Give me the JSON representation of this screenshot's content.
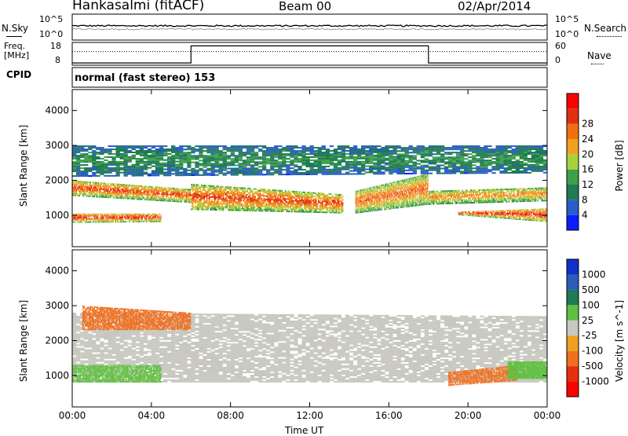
{
  "header": {
    "station": "Hankasalmi (fitACF)",
    "beam": "Beam 00",
    "date": "02/Apr/2014"
  },
  "noise_panel": {
    "left_label": "N.Sky",
    "right_label": "N.Search",
    "left_ticks": [
      "10^5",
      "10^0"
    ],
    "right_ticks": [
      "10^5",
      "10^0"
    ],
    "sky_level": 0.55,
    "search_level": 0.42
  },
  "freq_panel": {
    "left_label_1": "Freq.",
    "left_label_2": "[MHz]",
    "left_ticks": [
      "18",
      "8"
    ],
    "right_label": "Nave",
    "right_ticks": [
      "60",
      "0"
    ],
    "freq_level": 0.6,
    "nave_segments": [
      {
        "from": 0,
        "to": 6,
        "level": 0.1
      },
      {
        "from": 6,
        "to": 18,
        "level": 0.85
      },
      {
        "from": 18,
        "to": 24,
        "level": 0.1
      }
    ]
  },
  "cpid": {
    "label": "CPID",
    "value": "normal (fast stereo) 153"
  },
  "xaxis": {
    "label": "Time UT",
    "ticks": [
      "00:00",
      "04:00",
      "08:00",
      "12:00",
      "16:00",
      "20:00",
      "00:00"
    ],
    "range_hours": [
      0,
      24
    ]
  },
  "yaxis": {
    "label": "Slant Range [km]",
    "ticks": [
      "1000",
      "2000",
      "3000",
      "4000"
    ],
    "range_km": [
      100,
      4600
    ]
  },
  "power_scale": {
    "label": "Power [dB]",
    "ticks": [
      "4",
      "8",
      "12",
      "16",
      "20",
      "24",
      "28"
    ],
    "colors": [
      "#0a1eff",
      "#2a5cc8",
      "#1f7a55",
      "#3da04a",
      "#a8d23c",
      "#f0a020",
      "#f07010",
      "#e03010",
      "#ff0000"
    ]
  },
  "velocity_scale": {
    "label": "Velocity [m s^-1]",
    "ticks": [
      "1000",
      "500",
      "100",
      "25",
      "-25",
      "-100",
      "-500",
      "-1000"
    ],
    "colors": [
      "#1030c8",
      "#2a5cb8",
      "#1f7a55",
      "#60c040",
      "#c8c8c0",
      "#f0a020",
      "#f07020",
      "#e83010",
      "#ff0000"
    ]
  },
  "chart_data": [
    {
      "type": "heatmap",
      "name": "Power",
      "title": "Hankasalmi (fitACF) Beam 00 02/Apr/2014",
      "xlabel": "Time UT",
      "ylabel": "Slant Range [km]",
      "colorbar_label": "Power [dB]",
      "x_range_hours": [
        0,
        24
      ],
      "y_range_km": [
        100,
        4600
      ],
      "value_range_db": [
        0,
        30
      ],
      "scatter_bands": [
        {
          "t0": 0,
          "t1": 4.5,
          "r0_start": 780,
          "r1_start": 1050,
          "r0_end": 800,
          "r1_end": 1050,
          "peak_db": 28
        },
        {
          "t0": 0,
          "t1": 6,
          "r0_start": 1550,
          "r1_start": 2000,
          "r0_end": 1350,
          "r1_end": 1750,
          "peak_db": 26
        },
        {
          "t0": 6,
          "t1": 13.7,
          "r0_start": 1150,
          "r1_start": 1900,
          "r0_end": 1050,
          "r1_end": 1600,
          "peak_db": 26
        },
        {
          "t0": 14.3,
          "t1": 18,
          "r0_start": 1050,
          "r1_start": 1700,
          "r0_end": 1300,
          "r1_end": 2200,
          "peak_db": 24
        },
        {
          "t0": 18,
          "t1": 24,
          "r0_start": 1300,
          "r1_start": 1700,
          "r0_end": 1400,
          "r1_end": 1800,
          "peak_db": 22
        },
        {
          "t0": 19.5,
          "t1": 24,
          "r0_start": 1000,
          "r1_start": 1100,
          "r0_end": 800,
          "r1_end": 1200,
          "peak_db": 28
        },
        {
          "t0": 0,
          "t1": 24,
          "r0_start": 2100,
          "r1_start": 3000,
          "r0_end": 2200,
          "r1_end": 3000,
          "peak_db": 10
        }
      ]
    },
    {
      "type": "heatmap",
      "name": "Velocity",
      "xlabel": "Time UT",
      "ylabel": "Slant Range [km]",
      "colorbar_label": "Velocity [m s^-1]",
      "x_range_hours": [
        0,
        24
      ],
      "y_range_km": [
        100,
        4600
      ],
      "value_range_ms": [
        -1000,
        1000
      ],
      "scatter_bands": [
        {
          "t0": 0,
          "t1": 24,
          "r0_start": 800,
          "r1_start": 2800,
          "r0_end": 800,
          "r1_end": 2700,
          "velocity": 0
        },
        {
          "t0": 0,
          "t1": 4.5,
          "r0_start": 800,
          "r1_start": 1300,
          "r0_end": 800,
          "r1_end": 1300,
          "velocity": 100
        },
        {
          "t0": 0.5,
          "t1": 6,
          "r0_start": 2300,
          "r1_start": 3000,
          "r0_end": 2300,
          "r1_end": 2800,
          "velocity": -300
        },
        {
          "t0": 19,
          "t1": 22.5,
          "r0_start": 700,
          "r1_start": 1100,
          "r0_end": 850,
          "r1_end": 1300,
          "velocity": -300
        },
        {
          "t0": 22,
          "t1": 24,
          "r0_start": 900,
          "r1_start": 1400,
          "r0_end": 900,
          "r1_end": 1400,
          "velocity": 100
        }
      ]
    }
  ]
}
